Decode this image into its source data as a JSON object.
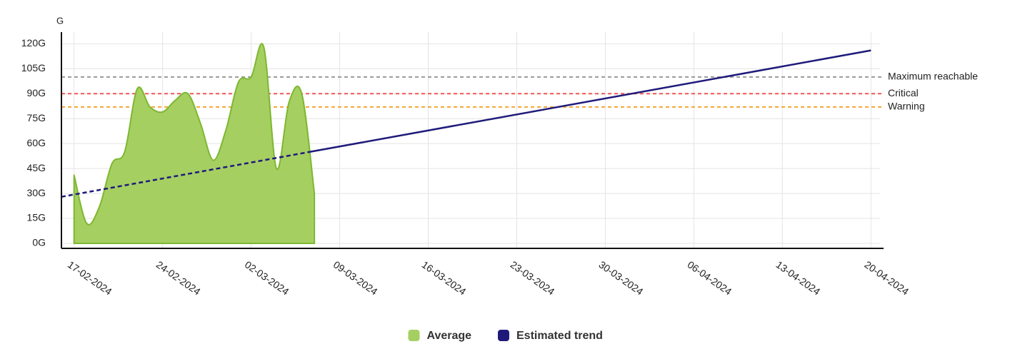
{
  "chart_data": {
    "type": "area",
    "y_axis_title": "G",
    "ylim": [
      -3,
      127
    ],
    "yticks": [
      {
        "value": 0,
        "label": "0G"
      },
      {
        "value": 15,
        "label": "15G"
      },
      {
        "value": 30,
        "label": "30G"
      },
      {
        "value": 45,
        "label": "45G"
      },
      {
        "value": 60,
        "label": "60G"
      },
      {
        "value": 75,
        "label": "75G"
      },
      {
        "value": 90,
        "label": "90G"
      },
      {
        "value": 105,
        "label": "105G"
      },
      {
        "value": 120,
        "label": "120G"
      }
    ],
    "xlim": [
      "16-02-2024",
      "21-04-2024"
    ],
    "xticks": [
      "17-02-2024",
      "24-02-2024",
      "02-03-2024",
      "09-03-2024",
      "16-03-2024",
      "23-03-2024",
      "30-03-2024",
      "06-04-2024",
      "13-04-2024",
      "20-04-2024"
    ],
    "grid": true,
    "legend": "bottom",
    "series": [
      {
        "name": "Average",
        "type": "area",
        "color": "#7cb82f",
        "fill": "#a6cf62",
        "x": [
          "17-02-2024",
          "18-02-2024",
          "19-02-2024",
          "20-02-2024",
          "21-02-2024",
          "22-02-2024",
          "23-02-2024",
          "24-02-2024",
          "25-02-2024",
          "26-02-2024",
          "27-02-2024",
          "28-02-2024",
          "29-02-2024",
          "01-03-2024",
          "02-03-2024",
          "03-03-2024",
          "04-03-2024",
          "05-03-2024",
          "06-03-2024",
          "07-03-2024"
        ],
        "values": [
          41,
          12,
          22,
          48,
          55,
          93,
          82,
          79,
          86,
          90,
          72,
          50,
          68,
          97,
          100,
          118,
          45,
          85,
          90,
          30
        ]
      },
      {
        "name": "Estimated trend",
        "type": "line",
        "color": "#1f1a7a",
        "x": [
          "16-02-2024",
          "20-04-2024"
        ],
        "values": [
          28,
          116
        ]
      }
    ],
    "thresholds": [
      {
        "label": "Maximum reachable",
        "value": 100,
        "color": "#999999"
      },
      {
        "label": "Critical",
        "value": 90,
        "color": "#f25757"
      },
      {
        "label": "Warning",
        "value": 82,
        "color": "#f5a533"
      }
    ]
  }
}
